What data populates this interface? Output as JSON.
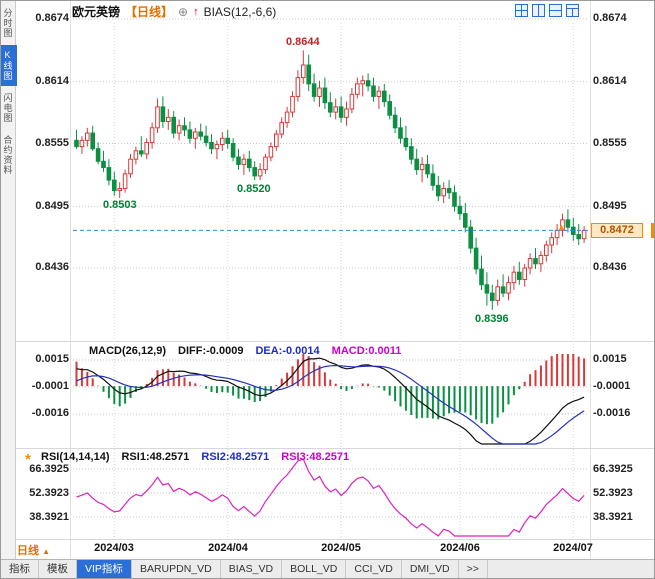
{
  "header": {
    "symbol": "欧元英镑",
    "period_tag": "【日线】",
    "add_icon": "⊕",
    "alert_icon": "↑",
    "indicator_label": "BIAS(12,-6,6)"
  },
  "sidebar": {
    "items": [
      {
        "label": "分时图",
        "active": false
      },
      {
        "label": "K线图",
        "active": true
      },
      {
        "label": "闪电图",
        "active": false
      },
      {
        "label": "合约资料",
        "active": false
      }
    ]
  },
  "price_axis_left": [
    "0.8674",
    "0.8614",
    "0.8555",
    "0.8495",
    "0.8436"
  ],
  "price_axis_right": [
    "0.8674",
    "0.8614",
    "0.8555",
    "0.8495",
    "0.8436"
  ],
  "current_price": "0.8472",
  "annotations": {
    "peak": "0.8644",
    "dip1": "0.8503",
    "dip2": "0.8520",
    "low": "0.8396"
  },
  "macd_panel": {
    "title": "MACD(26,12,9)",
    "diff": "DIFF:-0.0009",
    "dea": "DEA:-0.0014",
    "macd": "MACD:0.0011",
    "axis": [
      "0.0015",
      "-0.0001",
      "-0.0016"
    ]
  },
  "rsi_panel": {
    "icon": "*",
    "title": "RSI(14,14,14)",
    "rsi1": "RSI1:48.2571",
    "rsi2": "RSI2:48.2571",
    "rsi3": "RSI3:48.2571",
    "axis": [
      "66.3925",
      "52.3923",
      "38.3921"
    ]
  },
  "time_axis": [
    "2024/03",
    "2024/04",
    "2024/05",
    "2024/06",
    "2024/07"
  ],
  "footer": {
    "period_button": "日线",
    "period_arrow": "▲",
    "tabs": [
      {
        "label": "指标",
        "active": false
      },
      {
        "label": "模板",
        "active": false
      },
      {
        "label": "VIP指标",
        "active": true
      },
      {
        "label": "BARUPDN_VD",
        "active": false
      },
      {
        "label": "BIAS_VD",
        "active": false
      },
      {
        "label": "BOLL_VD",
        "active": false
      },
      {
        "label": "CCI_VD",
        "active": false
      },
      {
        "label": "DMI_VD",
        "active": false
      },
      {
        "label": ">>",
        "active": false
      }
    ]
  },
  "colors": {
    "up_red": "#d43a3a",
    "down_green": "#0b8f43",
    "accent_blue": "#2b6fd6",
    "current_line_blue": "#2a8fd8",
    "tag_orange": "#f08c00",
    "rsi_magenta": "#e020c0",
    "dea_blue": "#2233bb",
    "macd_magenta": "#cc00cc"
  },
  "chart_data": {
    "type": "candlestick",
    "symbol": "欧元英镑",
    "timeframe": "日线",
    "x_ticks": [
      "2024/03",
      "2024/04",
      "2024/05",
      "2024/06",
      "2024/07"
    ],
    "month_tick_indices": [
      7,
      28,
      49,
      71,
      92
    ],
    "y_ticks": [
      0.8674,
      0.8614,
      0.8555,
      0.8495,
      0.8436
    ],
    "current_price": 0.8472,
    "marked_points": {
      "high": 0.8644,
      "swing_low_1": 0.8503,
      "swing_low_2": 0.852,
      "low": 0.8396
    },
    "indicators": {
      "bias_params": [
        12,
        -6,
        6
      ],
      "macd": {
        "params": [
          26,
          12,
          9
        ],
        "diff": -0.0009,
        "dea": -0.0014,
        "macd": 0.0011,
        "y_ticks": [
          0.0015,
          -0.0001,
          -0.0016
        ]
      },
      "rsi": {
        "params": [
          14,
          14,
          14
        ],
        "rsi1": 48.2571,
        "rsi2": 48.2571,
        "rsi3": 48.2571,
        "y_ticks": [
          66.3925,
          52.3923,
          38.3921
        ]
      }
    },
    "candles_ohlc": [
      [
        0.8558,
        0.8568,
        0.855,
        0.8552
      ],
      [
        0.8552,
        0.8562,
        0.8545,
        0.8558
      ],
      [
        0.8558,
        0.857,
        0.8552,
        0.8565
      ],
      [
        0.8565,
        0.8572,
        0.8548,
        0.855
      ],
      [
        0.855,
        0.8556,
        0.8535,
        0.8538
      ],
      [
        0.8538,
        0.8548,
        0.8528,
        0.8532
      ],
      [
        0.8532,
        0.854,
        0.8515,
        0.852
      ],
      [
        0.852,
        0.8528,
        0.8505,
        0.851
      ],
      [
        0.851,
        0.8518,
        0.8503,
        0.8512
      ],
      [
        0.8512,
        0.853,
        0.8508,
        0.8526
      ],
      [
        0.8526,
        0.8545,
        0.8522,
        0.854
      ],
      [
        0.854,
        0.8552,
        0.8535,
        0.8548
      ],
      [
        0.8548,
        0.8562,
        0.8542,
        0.8545
      ],
      [
        0.8545,
        0.856,
        0.854,
        0.8556
      ],
      [
        0.8556,
        0.8575,
        0.855,
        0.857
      ],
      [
        0.857,
        0.8598,
        0.8565,
        0.859
      ],
      [
        0.859,
        0.86,
        0.857,
        0.8576
      ],
      [
        0.8576,
        0.8588,
        0.8568,
        0.858
      ],
      [
        0.858,
        0.8586,
        0.856,
        0.8565
      ],
      [
        0.8565,
        0.8578,
        0.8558,
        0.8572
      ],
      [
        0.8572,
        0.858,
        0.8562,
        0.8568
      ],
      [
        0.8568,
        0.8576,
        0.8555,
        0.856
      ],
      [
        0.856,
        0.857,
        0.855,
        0.8566
      ],
      [
        0.8566,
        0.8574,
        0.8558,
        0.8562
      ],
      [
        0.8562,
        0.8572,
        0.8552,
        0.8556
      ],
      [
        0.8556,
        0.8564,
        0.8545,
        0.855
      ],
      [
        0.855,
        0.8558,
        0.854,
        0.8554
      ],
      [
        0.8554,
        0.8566,
        0.8548,
        0.856
      ],
      [
        0.856,
        0.8568,
        0.855,
        0.8555
      ],
      [
        0.8555,
        0.856,
        0.8538,
        0.8542
      ],
      [
        0.8542,
        0.855,
        0.853,
        0.8535
      ],
      [
        0.8535,
        0.8545,
        0.8525,
        0.854
      ],
      [
        0.854,
        0.8548,
        0.8528,
        0.8532
      ],
      [
        0.8532,
        0.8538,
        0.852,
        0.8524
      ],
      [
        0.8524,
        0.8536,
        0.852,
        0.853
      ],
      [
        0.853,
        0.8545,
        0.8526,
        0.8542
      ],
      [
        0.8542,
        0.8556,
        0.8538,
        0.8552
      ],
      [
        0.8552,
        0.8568,
        0.8548,
        0.8564
      ],
      [
        0.8564,
        0.858,
        0.856,
        0.8575
      ],
      [
        0.8575,
        0.859,
        0.857,
        0.8585
      ],
      [
        0.8585,
        0.8605,
        0.858,
        0.86
      ],
      [
        0.86,
        0.8625,
        0.8595,
        0.8618
      ],
      [
        0.8618,
        0.8644,
        0.8612,
        0.863
      ],
      [
        0.863,
        0.864,
        0.8605,
        0.8612
      ],
      [
        0.8612,
        0.8622,
        0.8595,
        0.86
      ],
      [
        0.86,
        0.8615,
        0.859,
        0.8608
      ],
      [
        0.8608,
        0.8618,
        0.8588,
        0.8594
      ],
      [
        0.8594,
        0.8604,
        0.858,
        0.8585
      ],
      [
        0.8585,
        0.8598,
        0.8578,
        0.859
      ],
      [
        0.859,
        0.86,
        0.8575,
        0.858
      ],
      [
        0.858,
        0.8595,
        0.8572,
        0.8588
      ],
      [
        0.8588,
        0.8608,
        0.8584,
        0.8602
      ],
      [
        0.8602,
        0.8618,
        0.8598,
        0.8612
      ],
      [
        0.8612,
        0.862,
        0.86,
        0.8615
      ],
      [
        0.8615,
        0.8622,
        0.8605,
        0.861
      ],
      [
        0.861,
        0.8618,
        0.8595,
        0.86
      ],
      [
        0.86,
        0.861,
        0.8588,
        0.8605
      ],
      [
        0.8605,
        0.8612,
        0.859,
        0.8595
      ],
      [
        0.8595,
        0.8602,
        0.8578,
        0.8582
      ],
      [
        0.8582,
        0.859,
        0.8565,
        0.857
      ],
      [
        0.857,
        0.858,
        0.8555,
        0.856
      ],
      [
        0.856,
        0.8572,
        0.8548,
        0.8552
      ],
      [
        0.8552,
        0.856,
        0.8535,
        0.854
      ],
      [
        0.854,
        0.855,
        0.8525,
        0.853
      ],
      [
        0.853,
        0.8542,
        0.8518,
        0.8535
      ],
      [
        0.8535,
        0.8544,
        0.8522,
        0.8526
      ],
      [
        0.8526,
        0.8535,
        0.851,
        0.8515
      ],
      [
        0.8515,
        0.8524,
        0.85,
        0.8505
      ],
      [
        0.8505,
        0.8518,
        0.8498,
        0.8512
      ],
      [
        0.8512,
        0.852,
        0.8502,
        0.8508
      ],
      [
        0.8508,
        0.8515,
        0.849,
        0.8495
      ],
      [
        0.8495,
        0.8505,
        0.8482,
        0.8488
      ],
      [
        0.8488,
        0.8498,
        0.847,
        0.8475
      ],
      [
        0.8475,
        0.8482,
        0.845,
        0.8455
      ],
      [
        0.8455,
        0.8465,
        0.843,
        0.8435
      ],
      [
        0.8435,
        0.8448,
        0.8415,
        0.842
      ],
      [
        0.842,
        0.8432,
        0.84,
        0.8412
      ],
      [
        0.8412,
        0.842,
        0.8396,
        0.8405
      ],
      [
        0.8405,
        0.8425,
        0.84,
        0.8418
      ],
      [
        0.8418,
        0.843,
        0.8408,
        0.8412
      ],
      [
        0.8412,
        0.8428,
        0.8405,
        0.8422
      ],
      [
        0.8422,
        0.8438,
        0.8415,
        0.8432
      ],
      [
        0.8432,
        0.8442,
        0.842,
        0.8425
      ],
      [
        0.8425,
        0.844,
        0.8418,
        0.8436
      ],
      [
        0.8436,
        0.845,
        0.843,
        0.8445
      ],
      [
        0.8445,
        0.8455,
        0.8435,
        0.844
      ],
      [
        0.844,
        0.8452,
        0.8432,
        0.8448
      ],
      [
        0.8448,
        0.8462,
        0.8442,
        0.8458
      ],
      [
        0.8458,
        0.847,
        0.845,
        0.8465
      ],
      [
        0.8465,
        0.8478,
        0.8458,
        0.8472
      ],
      [
        0.8472,
        0.8488,
        0.8466,
        0.8482
      ],
      [
        0.8482,
        0.8492,
        0.847,
        0.8475
      ],
      [
        0.8475,
        0.8484,
        0.8462,
        0.8468
      ],
      [
        0.8468,
        0.8478,
        0.8458,
        0.8464
      ],
      [
        0.8464,
        0.8476,
        0.846,
        0.8472
      ]
    ]
  }
}
